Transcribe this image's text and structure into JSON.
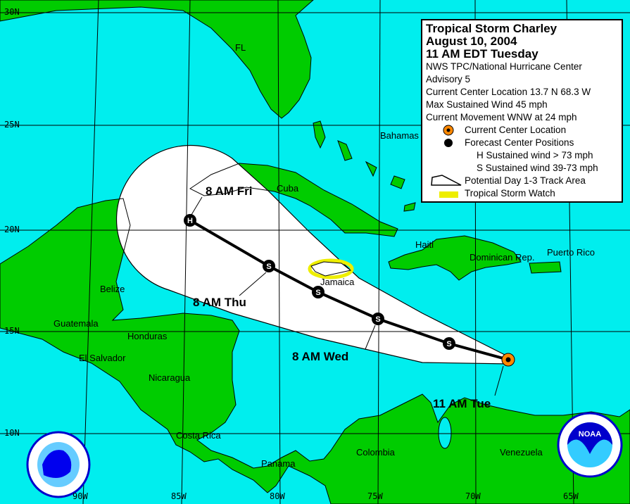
{
  "legend": {
    "title": "Tropical Storm Charley",
    "date": "August 10, 2004",
    "time": "11 AM EDT Tuesday",
    "agency": "NWS TPC/National Hurricane Center",
    "advisory": "Advisory 5",
    "location": "Current Center Location 13.7 N  68.3 W",
    "wind": "Max Sustained Wind  45 mph",
    "movement": "Current Movement WNW at  24 mph",
    "current_center": "Current Center Location",
    "forecast_positions": "Forecast Center Positions",
    "h_key": "H  Sustained wind > 73 mph",
    "s_key": "S  Sustained wind 39-73 mph",
    "track_area": "Potential Day 1-3 Track Area",
    "watch": "Tropical Storm Watch"
  },
  "colors": {
    "ocean": "#00eeee",
    "land": "#00cc00",
    "cone": "#ffffff",
    "watch": "#eeee00",
    "current": "#ff8800"
  },
  "places": [
    "FL",
    "Bahamas",
    "Cuba",
    "Haiti",
    "Dominican Rep.",
    "Puerto Rico",
    "Jamaica",
    "Belize",
    "Guatemala",
    "Honduras",
    "El Salvador",
    "Nicaragua",
    "Costa Rica",
    "Panama",
    "Colombia",
    "Venezuela"
  ],
  "track_labels": [
    "11 AM Tue",
    "8 AM Wed",
    "8 AM Thu",
    "8 AM Fri"
  ],
  "track_points": [
    {
      "type": "current",
      "letter": ""
    },
    {
      "type": "forecast",
      "letter": "S"
    },
    {
      "type": "forecast",
      "letter": "S"
    },
    {
      "type": "forecast",
      "letter": "S"
    },
    {
      "type": "forecast",
      "letter": "S"
    },
    {
      "type": "forecast",
      "letter": "H"
    }
  ],
  "current_center": {
    "lat": "13.7 N",
    "lon": "68.3 W"
  },
  "lat_labels": [
    "30N",
    "25N",
    "20N",
    "15N",
    "10N"
  ],
  "lon_labels": [
    "90W",
    "85W",
    "80W",
    "75W",
    "70W",
    "65W"
  ]
}
